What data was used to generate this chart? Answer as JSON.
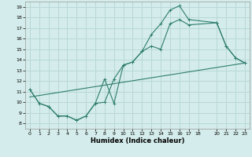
{
  "xlabel": "Humidex (Indice chaleur)",
  "ylabel": "",
  "bg_color": "#d4eceb",
  "grid_color": "#b8d8d6",
  "line_color": "#2e7d6e",
  "xlim": [
    -0.5,
    23.5
  ],
  "ylim": [
    7.5,
    19.5
  ],
  "xticks": [
    0,
    1,
    2,
    3,
    4,
    5,
    6,
    7,
    8,
    9,
    10,
    11,
    12,
    13,
    14,
    15,
    16,
    17,
    18,
    20,
    21,
    22,
    23
  ],
  "yticks": [
    8,
    9,
    10,
    11,
    12,
    13,
    14,
    15,
    16,
    17,
    18,
    19
  ],
  "line1_x": [
    0,
    1,
    2,
    3,
    4,
    5,
    6,
    7,
    8,
    9,
    10,
    11,
    12,
    13,
    14,
    15,
    16,
    17,
    20,
    21,
    22,
    23
  ],
  "line1_y": [
    11.2,
    9.9,
    9.6,
    8.7,
    8.7,
    8.3,
    8.7,
    9.9,
    12.2,
    9.9,
    13.5,
    13.8,
    14.8,
    16.4,
    17.4,
    18.7,
    19.1,
    17.8,
    17.5,
    15.3,
    14.2,
    13.7
  ],
  "line2_x": [
    0,
    1,
    2,
    3,
    4,
    5,
    6,
    7,
    8,
    9,
    10,
    11,
    12,
    13,
    14,
    15,
    16,
    17,
    20,
    21,
    22,
    23
  ],
  "line2_y": [
    11.2,
    9.9,
    9.6,
    8.7,
    8.7,
    8.3,
    8.7,
    9.9,
    10.0,
    12.2,
    13.5,
    13.8,
    14.8,
    15.3,
    15.0,
    17.4,
    17.8,
    17.3,
    17.5,
    15.3,
    14.2,
    13.7
  ],
  "line3_x": [
    0,
    23
  ],
  "line3_y": [
    10.5,
    13.7
  ],
  "marker": "+"
}
